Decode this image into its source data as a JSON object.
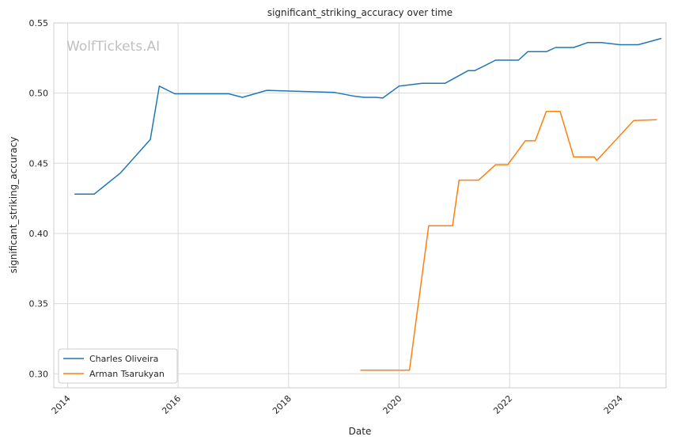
{
  "chart_data": {
    "type": "line",
    "title": "significant_striking_accuracy over time",
    "xlabel": "Date",
    "ylabel": "significant_striking_accuracy",
    "watermark": "WolfTickets.AI",
    "xlim": [
      "2013-10-01",
      "2024-11-01"
    ],
    "ylim": [
      0.29,
      0.55
    ],
    "x_ticks": [
      "2014",
      "2016",
      "2018",
      "2020",
      "2022",
      "2024"
    ],
    "y_ticks": [
      "0.30",
      "0.35",
      "0.40",
      "0.45",
      "0.50",
      "0.55"
    ],
    "grid": true,
    "legend_position": "lower-left",
    "colors": {
      "charles": "#1f77b4",
      "arman": "#ff7f0e",
      "grid": "#d9d9d9",
      "frame": "#cccccc"
    },
    "series": [
      {
        "name": "Charles Oliveira",
        "color": "#1f77b4",
        "points": [
          [
            "2014-02-15",
            0.428
          ],
          [
            "2014-06-25",
            0.428
          ],
          [
            "2014-12-15",
            0.443
          ],
          [
            "2015-07-01",
            0.467
          ],
          [
            "2015-08-30",
            0.505
          ],
          [
            "2015-12-10",
            0.4995
          ],
          [
            "2016-12-01",
            0.4995
          ],
          [
            "2017-03-01",
            0.497
          ],
          [
            "2017-08-10",
            0.502
          ],
          [
            "2018-01-01",
            0.5015
          ],
          [
            "2018-11-01",
            0.5005
          ],
          [
            "2019-03-01",
            0.498
          ],
          [
            "2019-05-15",
            0.497
          ],
          [
            "2019-08-01",
            0.497
          ],
          [
            "2019-09-15",
            0.4965
          ],
          [
            "2020-01-01",
            0.505
          ],
          [
            "2020-06-01",
            0.507
          ],
          [
            "2020-11-01",
            0.507
          ],
          [
            "2021-04-01",
            0.516
          ],
          [
            "2021-05-15",
            0.516
          ],
          [
            "2021-10-01",
            0.5235
          ],
          [
            "2022-03-01",
            0.5235
          ],
          [
            "2022-05-01",
            0.5295
          ],
          [
            "2022-09-01",
            0.5295
          ],
          [
            "2022-11-01",
            0.5325
          ],
          [
            "2023-03-01",
            0.5325
          ],
          [
            "2023-06-01",
            0.536
          ],
          [
            "2023-09-01",
            0.536
          ],
          [
            "2024-01-01",
            0.5345
          ],
          [
            "2024-05-01",
            0.5345
          ],
          [
            "2024-10-01",
            0.539
          ]
        ]
      },
      {
        "name": "Arman Tsarukyan",
        "color": "#ff7f0e",
        "points": [
          [
            "2019-04-20",
            0.3025
          ],
          [
            "2020-03-10",
            0.3025
          ],
          [
            "2020-07-15",
            0.4055
          ],
          [
            "2020-12-20",
            0.4055
          ],
          [
            "2021-02-01",
            0.438
          ],
          [
            "2021-06-10",
            0.438
          ],
          [
            "2021-10-01",
            0.449
          ],
          [
            "2021-12-20",
            0.449
          ],
          [
            "2022-04-15",
            0.466
          ],
          [
            "2022-06-20",
            0.466
          ],
          [
            "2022-09-01",
            0.487
          ],
          [
            "2022-12-01",
            0.487
          ],
          [
            "2023-03-01",
            0.4545
          ],
          [
            "2023-07-15",
            0.4545
          ],
          [
            "2023-08-01",
            0.452
          ],
          [
            "2024-04-01",
            0.4805
          ],
          [
            "2024-09-01",
            0.481
          ]
        ]
      }
    ]
  }
}
